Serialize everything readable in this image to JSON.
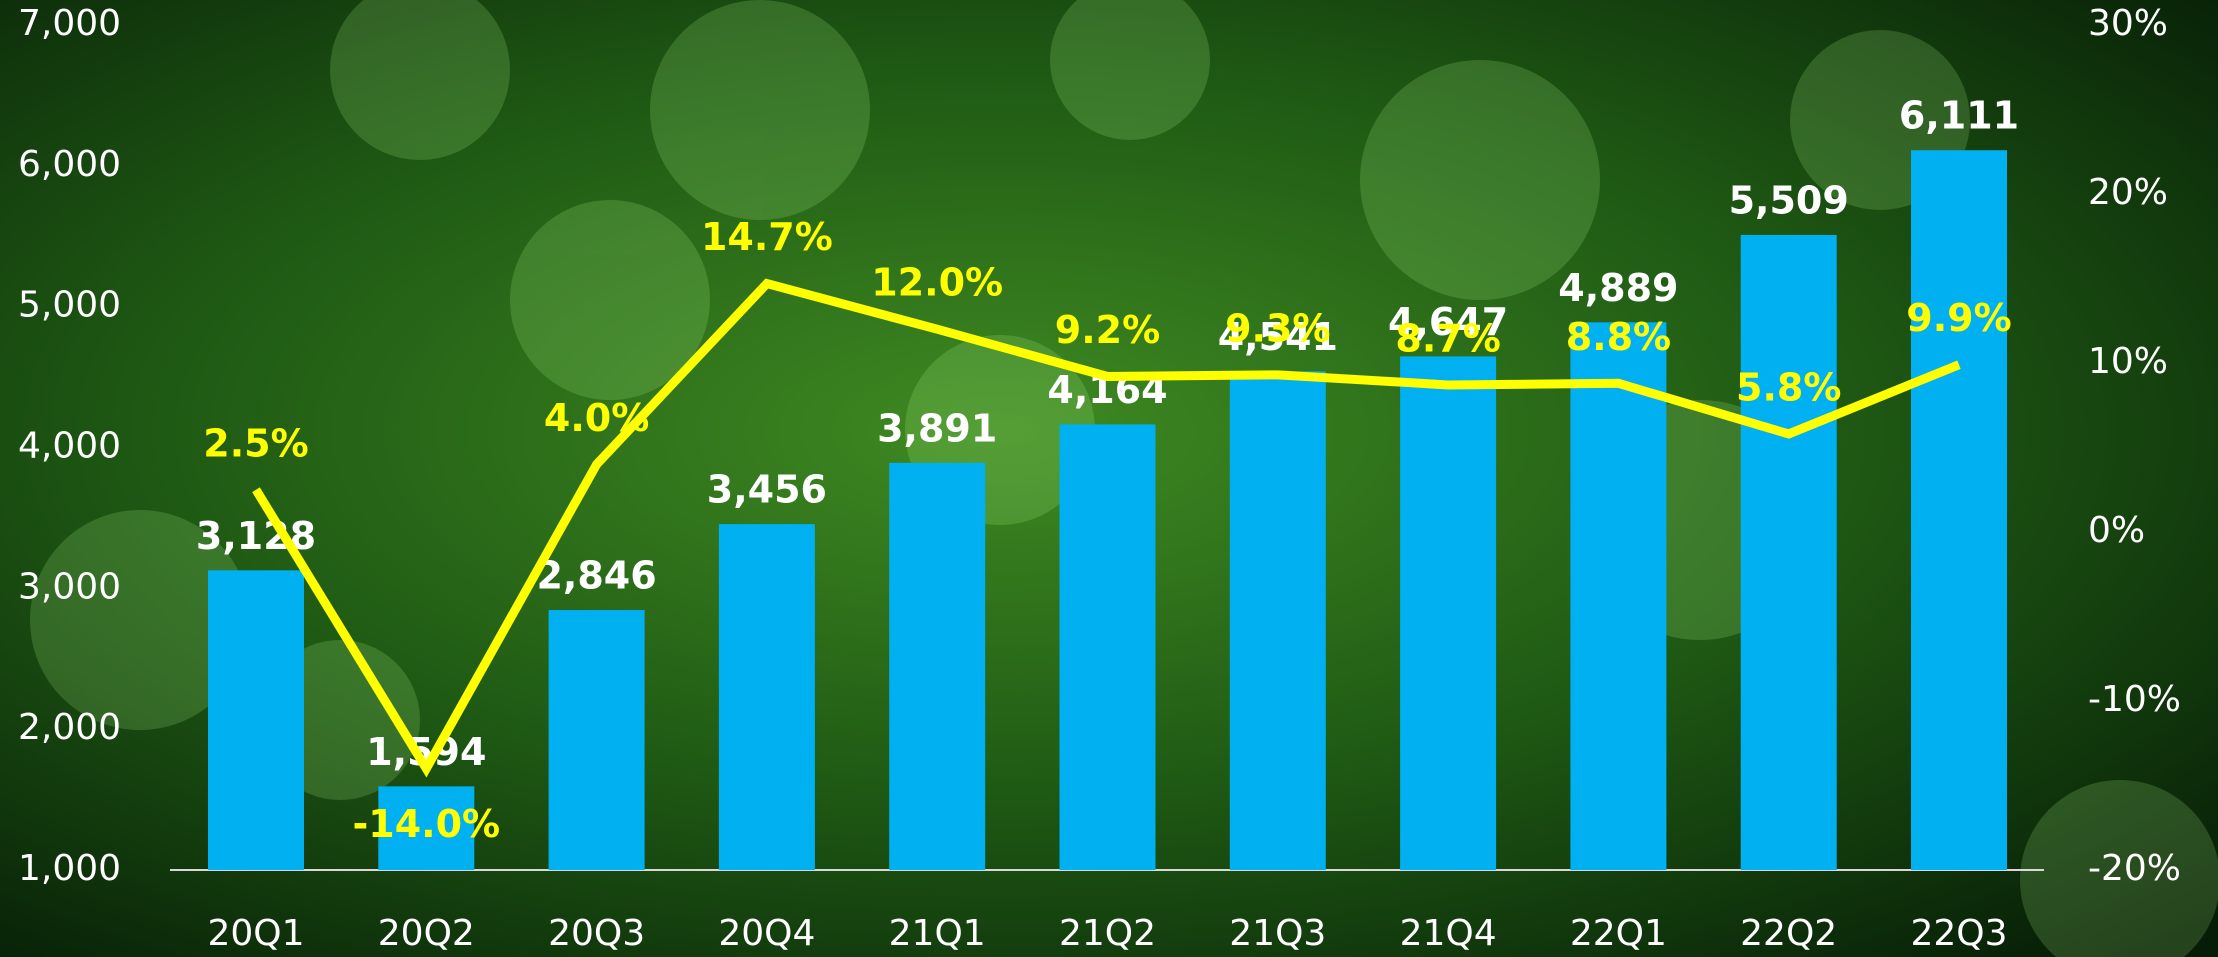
{
  "chart_data": {
    "type": "bar-line",
    "categories": [
      "20Q1",
      "20Q2",
      "20Q3",
      "20Q4",
      "21Q1",
      "21Q2",
      "21Q3",
      "21Q4",
      "22Q1",
      "22Q2",
      "22Q3"
    ],
    "series": [
      {
        "color": "#00b0f0",
        "values": [
          3128,
          1594,
          2846,
          3456,
          3891,
          4164,
          4541,
          4647,
          4889,
          5509,
          6111
        ],
        "value_labels": [
          "3,128",
          "1,594",
          "2,846",
          "3,456",
          "3,891",
          "4,164",
          "4,541",
          "4,647",
          "4,889",
          "5,509",
          "6,111"
        ]
      },
      {
        "color": "#ffff00",
        "axis": "y2",
        "values": [
          2.5,
          -14.0,
          4.0,
          14.7,
          12.0,
          9.2,
          9.3,
          8.7,
          8.8,
          5.8,
          9.9
        ],
        "value_labels": [
          "2.5%",
          "-14.0%",
          "4.0%",
          "14.7%",
          "12.0%",
          "9.2%",
          "9.3%",
          "8.7%",
          "8.8%",
          "5.8%",
          "9.9%"
        ]
      }
    ],
    "ylim": [
      1000,
      7000
    ],
    "yticks": [
      {
        "value": 1000,
        "label": "1,000"
      },
      {
        "value": 2000,
        "label": "2,000"
      },
      {
        "value": 3000,
        "label": "3,000"
      },
      {
        "value": 4000,
        "label": "4,000"
      },
      {
        "value": 5000,
        "label": "5,000"
      },
      {
        "value": 6000,
        "label": "6,000"
      },
      {
        "value": 7000,
        "label": "7,000"
      }
    ],
    "y2lim": [
      -20,
      30
    ],
    "y2ticks": [
      {
        "value": -20,
        "label": "-20%"
      },
      {
        "value": -10,
        "label": "-10%"
      },
      {
        "value": 0,
        "label": "0%"
      },
      {
        "value": 10,
        "label": "10%"
      },
      {
        "value": 20,
        "label": "20%"
      },
      {
        "value": 30,
        "label": "30%"
      }
    ]
  }
}
